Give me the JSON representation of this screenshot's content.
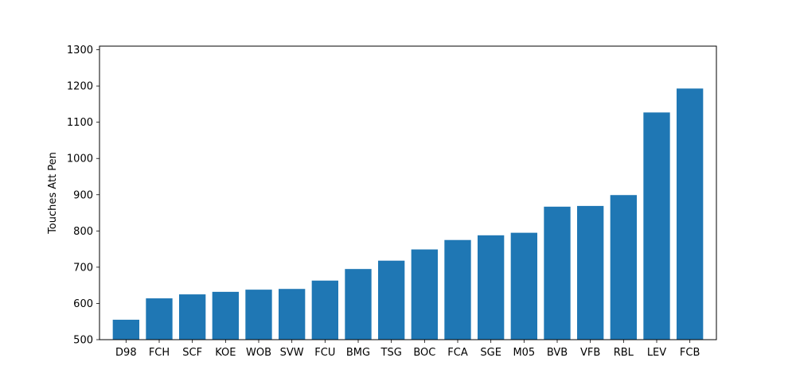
{
  "chart_data": {
    "type": "bar",
    "title": "",
    "xlabel": "",
    "ylabel": "Touches Att Pen",
    "categories": [
      "D98",
      "FCH",
      "SCF",
      "KOE",
      "WOB",
      "SVW",
      "FCU",
      "BMG",
      "TSG",
      "BOC",
      "FCA",
      "SGE",
      "M05",
      "BVB",
      "VFB",
      "RBL",
      "LEV",
      "FCB"
    ],
    "values": [
      555,
      614,
      625,
      632,
      638,
      640,
      663,
      695,
      718,
      749,
      775,
      788,
      795,
      867,
      869,
      899,
      1127,
      1193
    ],
    "ylim": [
      500,
      1310
    ],
    "yticks": [
      500,
      600,
      700,
      800,
      900,
      1000,
      1100,
      1200,
      1300
    ],
    "grid": false,
    "bar_color": "#1f77b4"
  }
}
